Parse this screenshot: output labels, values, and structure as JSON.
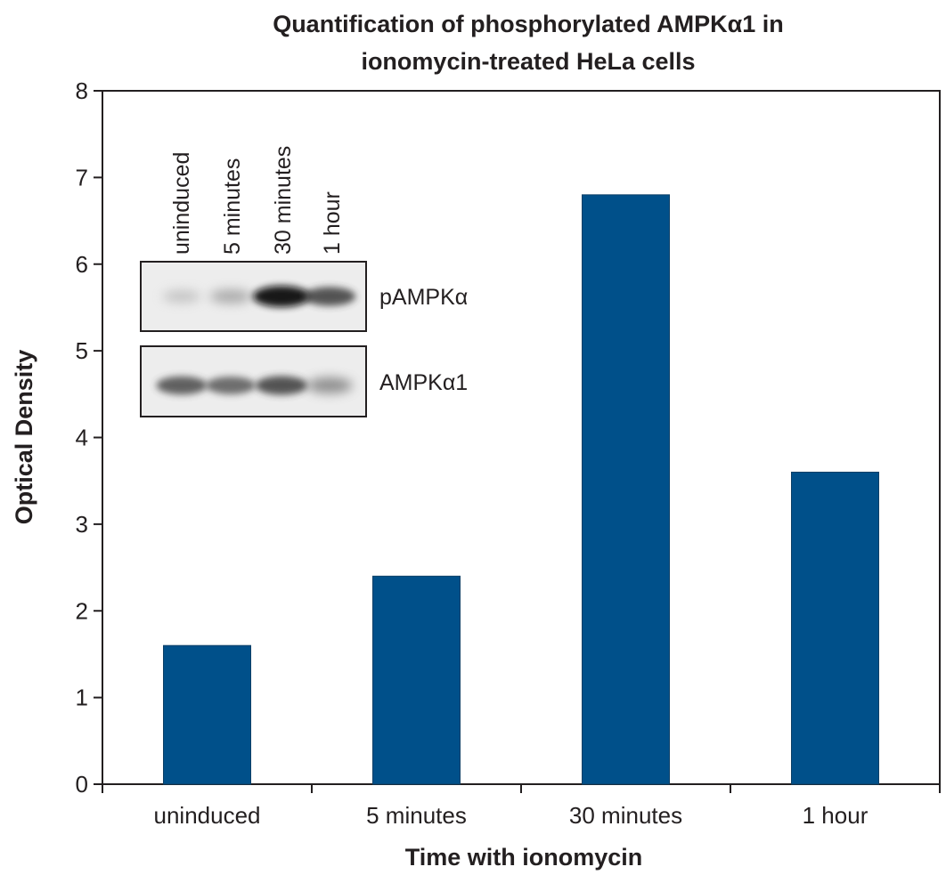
{
  "chart_data": {
    "type": "bar",
    "title": "Quantification of phosphorylated AMPKα1 in ionomycin-treated HeLa cells",
    "title_lines": [
      "Quantification of phosphorylated AMPKα1 in",
      "ionomycin-treated HeLa cells"
    ],
    "xlabel": "Time with ionomycin",
    "ylabel": "Optical Density",
    "categories": [
      "uninduced",
      "5 minutes",
      "30 minutes",
      "1 hour"
    ],
    "values": [
      1.6,
      2.4,
      6.8,
      3.6
    ],
    "ylim": [
      0,
      8
    ],
    "yticks": [
      0,
      1,
      2,
      3,
      4,
      5,
      6,
      7,
      8
    ],
    "bar_color": "#00508a",
    "grid": false,
    "legend": "none"
  },
  "inset_blot": {
    "lane_labels": [
      "uninduced",
      "5 minutes",
      "30 minutes",
      "1 hour"
    ],
    "rows": [
      {
        "label": "pAMPKα",
        "band_intensity": [
          0.25,
          0.4,
          1.0,
          0.8
        ]
      },
      {
        "label": "AMPKα1",
        "band_intensity": [
          0.75,
          0.7,
          0.8,
          0.55
        ]
      }
    ]
  }
}
